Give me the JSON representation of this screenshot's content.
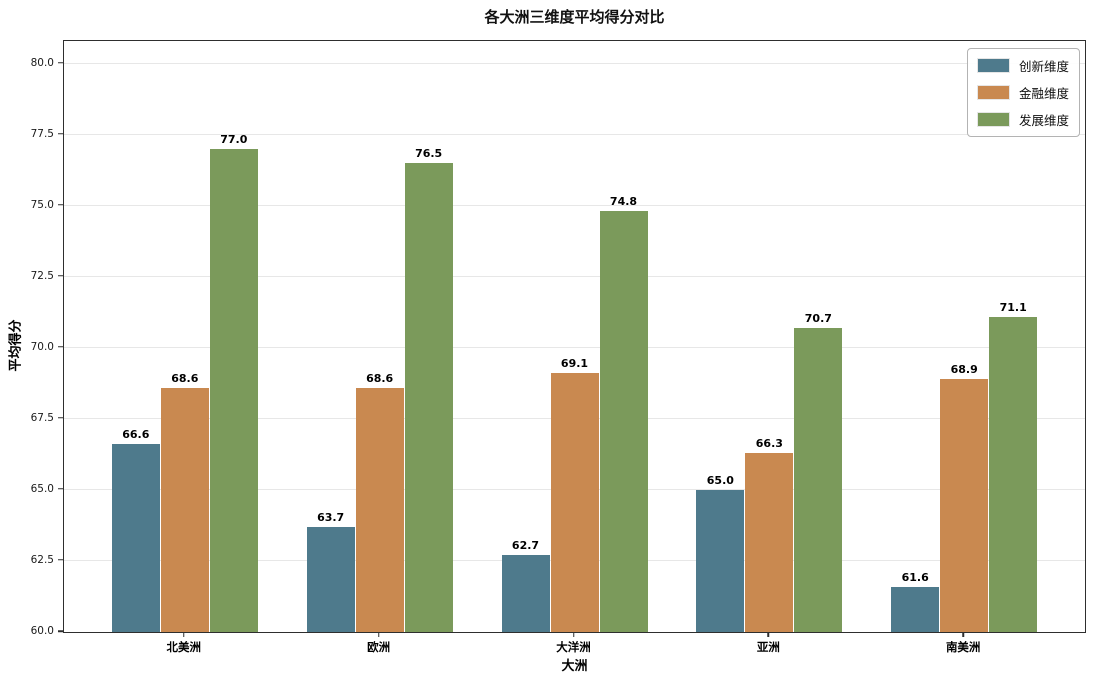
{
  "chart_data": {
    "type": "bar",
    "title": "各大洲三维度平均得分对比",
    "xlabel": "大洲",
    "ylabel": "平均得分",
    "categories": [
      "北美洲",
      "欧洲",
      "大洋洲",
      "亚洲",
      "南美洲"
    ],
    "series": [
      {
        "name": "创新维度",
        "color": "#4e7a8c",
        "values": [
          66.6,
          63.7,
          62.7,
          65.0,
          61.6
        ]
      },
      {
        "name": "金融维度",
        "color": "#c98950",
        "values": [
          68.6,
          68.6,
          69.1,
          66.3,
          68.9
        ]
      },
      {
        "name": "发展维度",
        "color": "#7b9a5b",
        "values": [
          77.0,
          76.5,
          74.8,
          70.7,
          71.1
        ]
      }
    ],
    "ylim": [
      60.0,
      80.8
    ],
    "yticks": [
      60.0,
      62.5,
      65.0,
      67.5,
      70.0,
      72.5,
      75.0,
      77.5,
      80.0
    ],
    "grid": true,
    "legend_position": "upper right",
    "colors": {
      "spine": "#2e2e2e",
      "gridline": "#e7e7e7",
      "background": "#ffffff",
      "text": "#000000"
    }
  }
}
